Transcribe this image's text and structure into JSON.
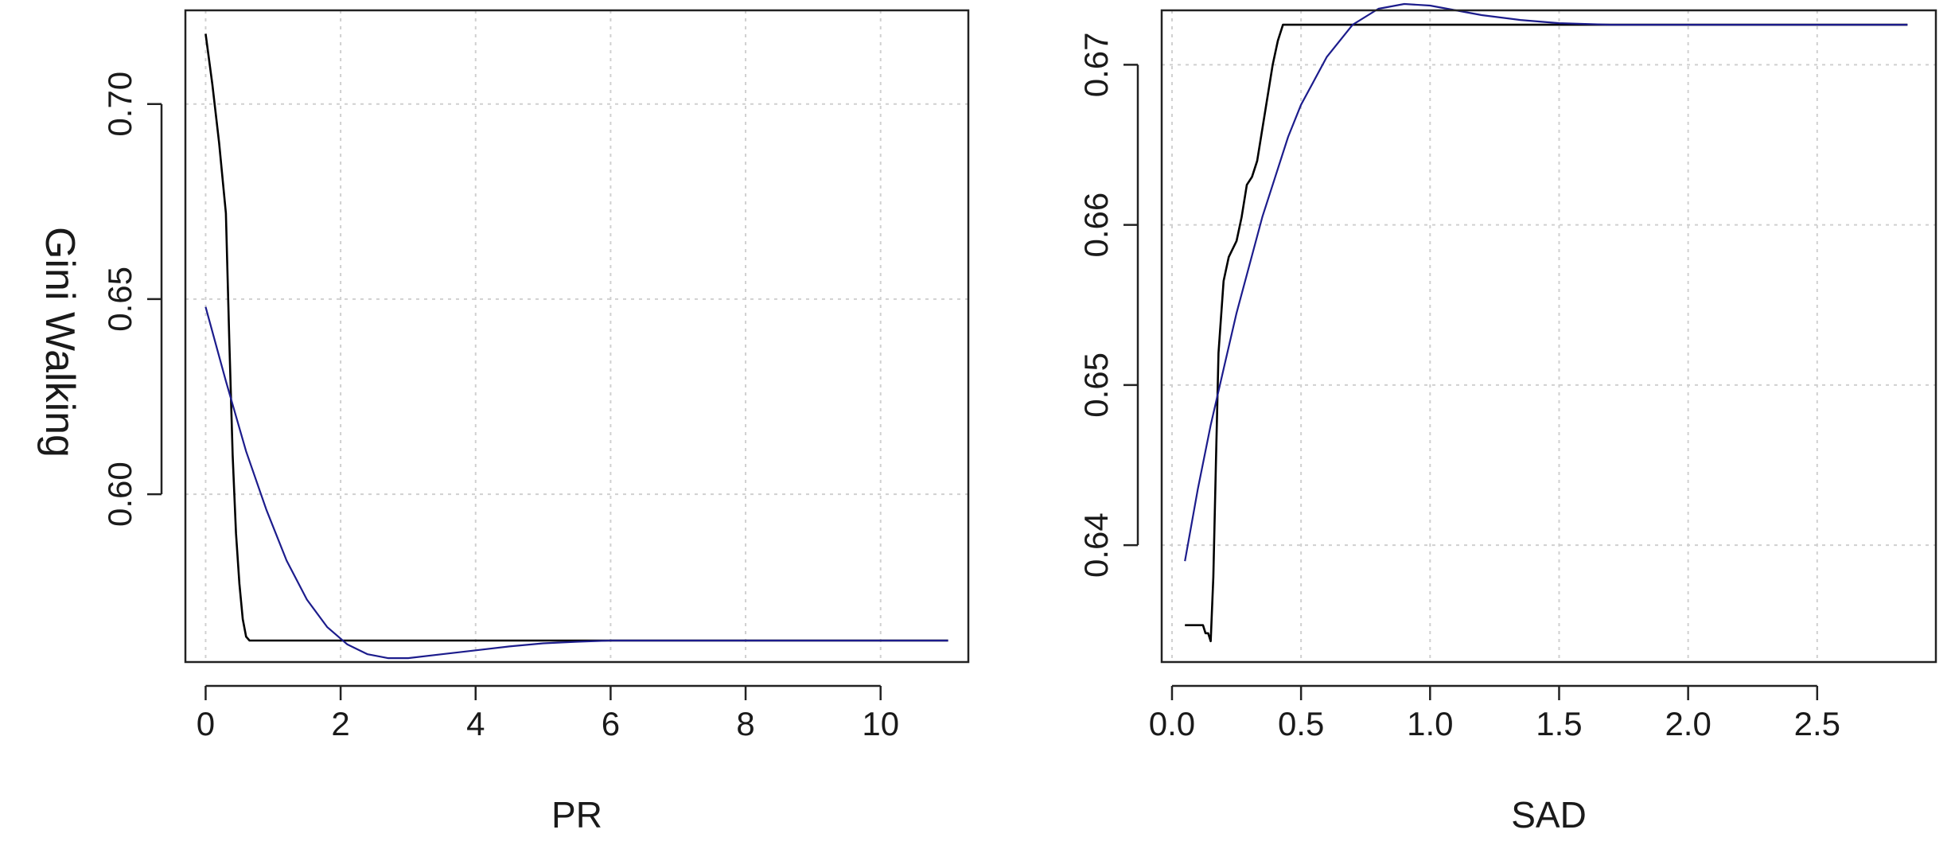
{
  "figure": {
    "ylabel": "Gini Walking"
  },
  "chart_data": [
    {
      "type": "line",
      "title": "",
      "xlabel": "PR",
      "ylabel": "Gini Walking",
      "xlim": [
        -0.3,
        11.3
      ],
      "ylim": [
        0.557,
        0.724
      ],
      "xticks": [
        0,
        2,
        4,
        6,
        8,
        10
      ],
      "xtick_labels": [
        "0",
        "2",
        "4",
        "6",
        "8",
        "10"
      ],
      "yticks": [
        0.6,
        0.65,
        0.7
      ],
      "ytick_labels": [
        "0.60",
        "0.65",
        "0.70"
      ],
      "grid": true,
      "series": [
        {
          "color": "#000000",
          "x": [
            0.0,
            0.1,
            0.2,
            0.3,
            0.35,
            0.4,
            0.45,
            0.5,
            0.55,
            0.6,
            0.65,
            1.0,
            2.0,
            4.0,
            6.0,
            8.0,
            10.0,
            11.0
          ],
          "y": [
            0.718,
            0.705,
            0.69,
            0.672,
            0.64,
            0.61,
            0.59,
            0.577,
            0.568,
            0.5635,
            0.5625,
            0.5625,
            0.5625,
            0.5625,
            0.5625,
            0.5625,
            0.5625,
            0.5625
          ]
        },
        {
          "color": "#1c1c8c",
          "x": [
            0.0,
            0.3,
            0.6,
            0.9,
            1.2,
            1.5,
            1.8,
            2.1,
            2.4,
            2.7,
            3.0,
            3.5,
            4.0,
            4.5,
            5.0,
            5.5,
            6.0,
            7.0,
            8.0,
            9.0,
            10.0,
            11.0
          ],
          "y": [
            0.648,
            0.629,
            0.611,
            0.596,
            0.583,
            0.573,
            0.566,
            0.5615,
            0.559,
            0.558,
            0.558,
            0.559,
            0.56,
            0.561,
            0.5618,
            0.5622,
            0.5625,
            0.5625,
            0.5625,
            0.5625,
            0.5625,
            0.5625
          ]
        }
      ]
    },
    {
      "type": "line",
      "title": "",
      "xlabel": "SAD",
      "ylabel": "",
      "xlim": [
        -0.04,
        2.96
      ],
      "ylim": [
        0.6327,
        0.6734
      ],
      "xticks": [
        0.0,
        0.5,
        1.0,
        1.5,
        2.0,
        2.5
      ],
      "xtick_labels": [
        "0.0",
        "0.5",
        "1.0",
        "1.5",
        "2.0",
        "2.5"
      ],
      "yticks": [
        0.64,
        0.65,
        0.66,
        0.67
      ],
      "ytick_labels": [
        "0.64",
        "0.65",
        "0.66",
        "0.67"
      ],
      "grid": true,
      "series": [
        {
          "color": "#000000",
          "x": [
            0.05,
            0.12,
            0.13,
            0.14,
            0.15,
            0.16,
            0.17,
            0.18,
            0.2,
            0.22,
            0.25,
            0.27,
            0.29,
            0.31,
            0.33,
            0.35,
            0.37,
            0.39,
            0.41,
            0.43,
            0.5,
            1.0,
            1.5,
            2.0,
            2.5,
            2.85
          ],
          "y": [
            0.635,
            0.635,
            0.6345,
            0.6345,
            0.634,
            0.638,
            0.645,
            0.652,
            0.6565,
            0.658,
            0.659,
            0.6605,
            0.6625,
            0.663,
            0.664,
            0.666,
            0.668,
            0.67,
            0.6715,
            0.6725,
            0.6725,
            0.6725,
            0.6725,
            0.6725,
            0.6725,
            0.6725
          ]
        },
        {
          "color": "#1c1c8c",
          "x": [
            0.05,
            0.1,
            0.15,
            0.2,
            0.25,
            0.3,
            0.35,
            0.4,
            0.45,
            0.5,
            0.55,
            0.6,
            0.7,
            0.8,
            0.9,
            1.0,
            1.1,
            1.2,
            1.35,
            1.5,
            1.7,
            1.9,
            2.2,
            2.5,
            2.85
          ],
          "y": [
            0.639,
            0.6435,
            0.6475,
            0.651,
            0.6545,
            0.6575,
            0.6605,
            0.663,
            0.6655,
            0.6675,
            0.669,
            0.6705,
            0.6725,
            0.6735,
            0.6738,
            0.6737,
            0.6734,
            0.6731,
            0.6728,
            0.6726,
            0.6725,
            0.6725,
            0.6725,
            0.6725,
            0.6725
          ]
        }
      ]
    }
  ]
}
